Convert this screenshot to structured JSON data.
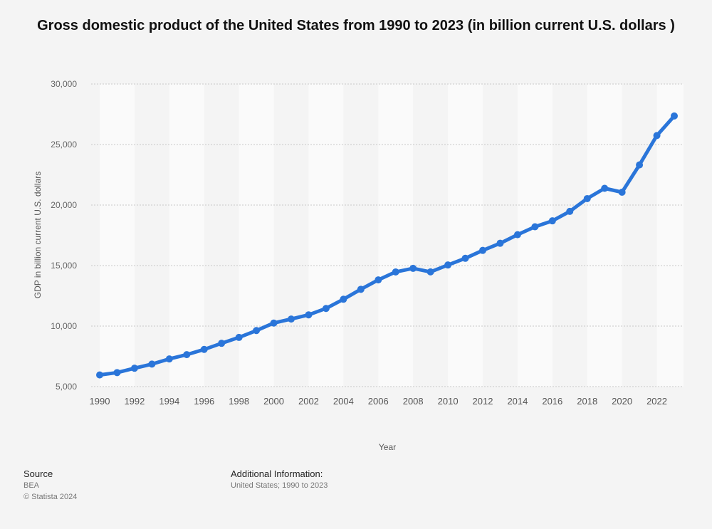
{
  "title": "Gross domestic product of the United States from 1990 to 2023 (in billion current U.S. dollars )",
  "footer": {
    "source_heading": "Source",
    "source_name": "BEA",
    "copyright": "© Statista 2024",
    "additional_heading": "Additional Information:",
    "additional_text": "United States; 1990 to 2023"
  },
  "colors": {
    "line": "#2a75d9",
    "background": "#f4f4f4",
    "band": "#fafafa",
    "grid": "#c8c8c8"
  },
  "chart_data": {
    "type": "line",
    "title": "Gross domestic product of the United States from 1990 to 2023 (in billion current U.S. dollars )",
    "xlabel": "Year",
    "ylabel": "GDP in billion current U.S. dollars",
    "x": [
      1990,
      1991,
      1992,
      1993,
      1994,
      1995,
      1996,
      1997,
      1998,
      1999,
      2000,
      2001,
      2002,
      2003,
      2004,
      2005,
      2006,
      2007,
      2008,
      2009,
      2010,
      2011,
      2012,
      2013,
      2014,
      2015,
      2016,
      2017,
      2018,
      2019,
      2020,
      2021,
      2022,
      2023
    ],
    "x_tick_labels": [
      "1990",
      "1992",
      "1994",
      "1996",
      "1998",
      "2000",
      "2002",
      "2004",
      "2006",
      "2008",
      "2010",
      "2012",
      "2014",
      "2016",
      "2018",
      "2020",
      "2022"
    ],
    "y_tick_labels": [
      "5,000",
      "10,000",
      "15,000",
      "20,000",
      "25,000",
      "30,000"
    ],
    "y_ticks": [
      5000,
      10000,
      15000,
      20000,
      25000,
      30000
    ],
    "ylim": [
      5000,
      30000
    ],
    "grid": true,
    "series": [
      {
        "values": [
          5963,
          6158,
          6520,
          6859,
          7287,
          7640,
          8073,
          8578,
          9063,
          9631,
          10251,
          10582,
          10929,
          11457,
          12217,
          13039,
          13816,
          14474,
          14770,
          14478,
          15049,
          15600,
          16254,
          16843,
          17551,
          18206,
          18695,
          19477,
          20533,
          21381,
          21060,
          23315,
          25744,
          27361
        ]
      }
    ]
  }
}
